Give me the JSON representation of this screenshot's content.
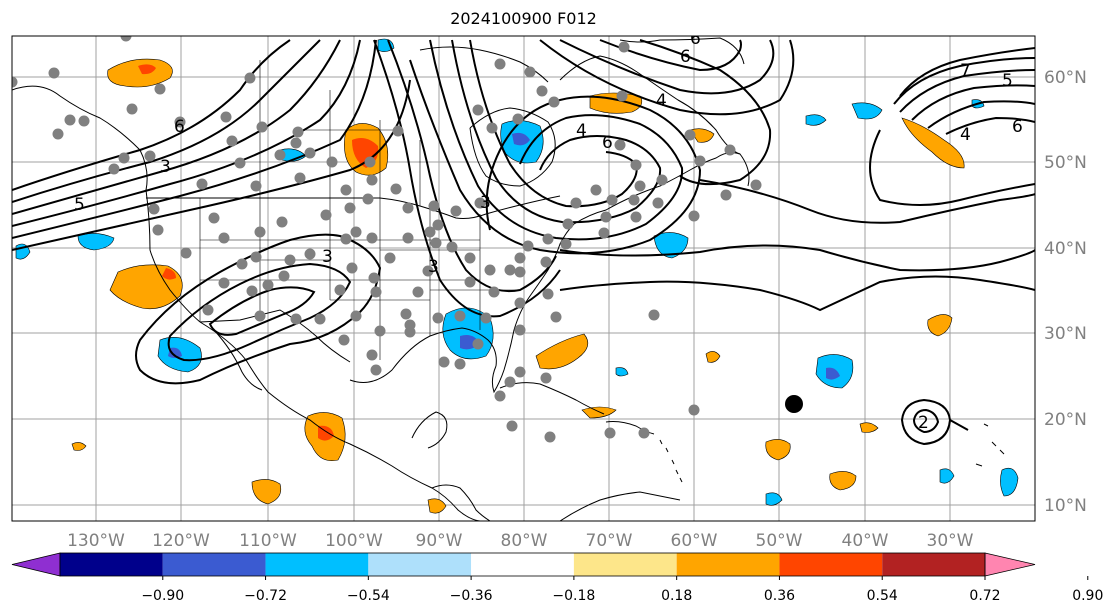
{
  "title": "2024100900 F012",
  "map": {
    "lon_labels": [
      "130°W",
      "120°W",
      "110°W",
      "100°W",
      "90°W",
      "80°W",
      "70°W",
      "60°W",
      "50°W",
      "40°W",
      "30°W"
    ],
    "lat_labels": [
      "60°N",
      "50°N",
      "40°N",
      "30°N",
      "20°N",
      "10°N"
    ],
    "contour_labels": [
      "6",
      "5",
      "4",
      "3",
      "6",
      "6",
      "3",
      "4",
      "3",
      "3",
      "6",
      "4",
      "7",
      "5",
      "2",
      "6"
    ]
  },
  "colorbar": {
    "ticks": [
      "−0.90",
      "−0.72",
      "−0.54",
      "−0.36",
      "−0.18",
      "0.18",
      "0.36",
      "0.54",
      "0.72",
      "0.90"
    ],
    "colors": [
      "#8f2fd1",
      "#00008b",
      "#3b5bd1",
      "#00bfff",
      "#aee0fb",
      "#ffffff",
      "#fde68a",
      "#ffa500",
      "#ff4500",
      "#b22222",
      "#ff85b0"
    ]
  }
}
